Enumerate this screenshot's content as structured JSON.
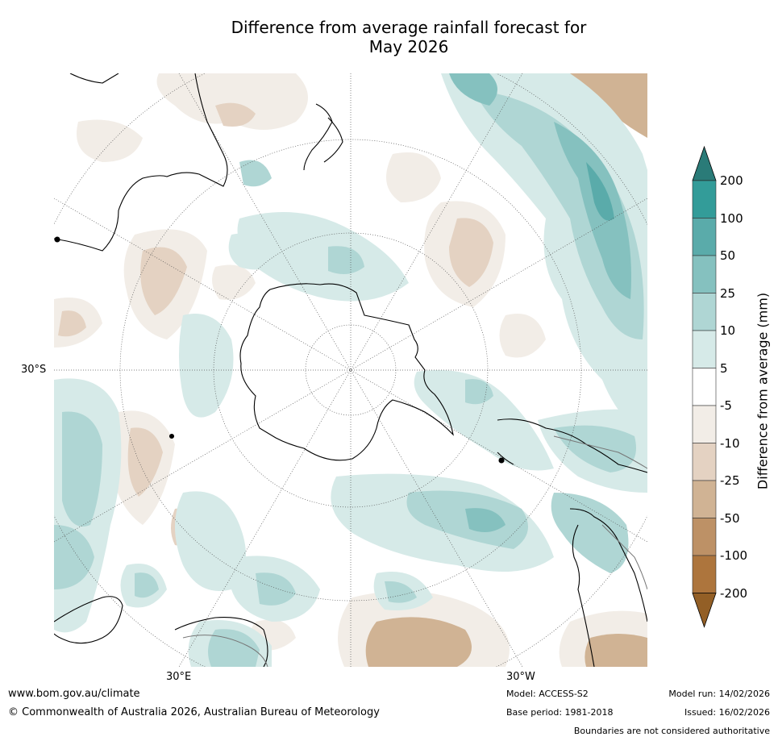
{
  "title_line1": "Difference from average rainfall forecast for",
  "title_line2": "May 2026",
  "map": {
    "projection": "south polar stereographic",
    "lat_label": "30°S",
    "lon_labels": {
      "east": "30°E",
      "west": "30°W"
    }
  },
  "colorbar": {
    "label": "Difference from average (mm)",
    "ticks": [
      "200",
      "100",
      "50",
      "25",
      "10",
      "5",
      "-5",
      "-10",
      "-25",
      "-50",
      "-100",
      "-200"
    ],
    "colors": {
      "over": "#2a7b78",
      "gt100": "#339c99",
      "50_100": "#5aabaa",
      "25_50": "#85c1bf",
      "10_25": "#afd6d4",
      "5_10": "#d6eae8",
      "neutral": "#ffffff",
      "m5_m10": "#f2ede7",
      "m10_m25": "#e4d2c2",
      "m25_m50": "#d0b394",
      "m50_m100": "#bd9166",
      "m100_m200": "#ad753d",
      "under": "#935f26"
    }
  },
  "footer": {
    "url": "www.bom.gov.au/climate",
    "copyright": "© Commonwealth of Australia 2026, Australian Bureau of Meteorology",
    "model": "Model: ACCESS-S2",
    "base_period": "Base period: 1981-2018",
    "model_run": "Model run: 14/02/2026",
    "issued": "Issued: 16/02/2026",
    "disclaimer": "Boundaries are not considered authoritative"
  }
}
